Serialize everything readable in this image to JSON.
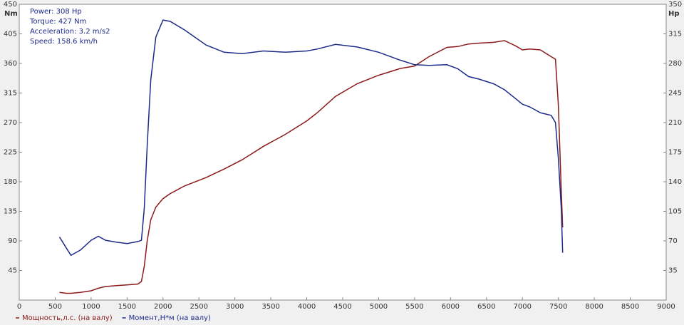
{
  "chart_data": {
    "type": "line",
    "annotations": [
      "Power: 308 Hp",
      "Torque: 427 Nm",
      "Acceleration: 3.2 m/s2",
      "Speed: 158.6 km/h"
    ],
    "y_label": "Nm",
    "y2_label": "Hp",
    "x": [
      560,
      650,
      720,
      850,
      1000,
      1100,
      1200,
      1350,
      1500,
      1650,
      1700,
      1740,
      1780,
      1830,
      1900,
      2000,
      2100,
      2300,
      2600,
      2850,
      3100,
      3400,
      3700,
      4000,
      4150,
      4400,
      4700,
      5000,
      5300,
      5500,
      5700,
      5950,
      6100,
      6250,
      6400,
      6600,
      6750,
      6900,
      7000,
      7100,
      7250,
      7400,
      7460,
      7500,
      7540,
      7560
    ],
    "series": [
      {
        "name": "Мощность,л.с. (на валу)",
        "color": "#8b1a1a",
        "axis": "y2",
        "values": [
          9,
          8,
          8,
          9,
          11,
          14,
          16,
          17,
          18,
          19,
          22,
          40,
          70,
          95,
          110,
          120,
          126,
          135,
          145,
          155,
          166,
          182,
          196,
          212,
          222,
          241,
          256,
          266,
          274,
          277,
          288,
          299,
          300,
          303,
          304,
          305,
          307,
          301,
          296,
          297,
          296,
          288,
          285,
          230,
          130,
          86
        ]
      },
      {
        "name": "Момент,Н*м (на валу)",
        "color": "#1c2a8a",
        "values": [
          96,
          80,
          68,
          76,
          91,
          97,
          91,
          88,
          86,
          89,
          91,
          140,
          235,
          335,
          400,
          426,
          424,
          411,
          388,
          377,
          375,
          379,
          377,
          379,
          382,
          389,
          385,
          377,
          365,
          358,
          357,
          358,
          352,
          340,
          336,
          329,
          320,
          307,
          298,
          294,
          285,
          281,
          270,
          215,
          140,
          72
        ]
      }
    ],
    "xlim": [
      0,
      9000
    ],
    "xticks": [
      0,
      500,
      1000,
      1500,
      2000,
      2500,
      3000,
      3500,
      4000,
      4500,
      5000,
      5500,
      6000,
      6500,
      7000,
      7500,
      8000,
      8500,
      9000
    ],
    "ylim": [
      0,
      450
    ],
    "yticks": [
      45,
      90,
      135,
      180,
      225,
      270,
      315,
      360,
      405,
      450
    ],
    "y2lim": [
      0,
      350
    ],
    "y2ticks": [
      35,
      70,
      105,
      140,
      175,
      210,
      245,
      280,
      315,
      350
    ],
    "grid": false,
    "legend": "bottom-left"
  }
}
